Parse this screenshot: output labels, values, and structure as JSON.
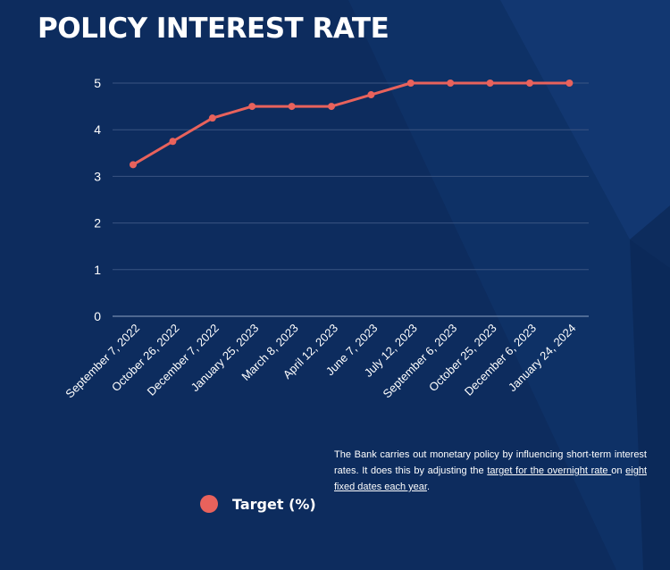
{
  "title": "POLICY INTEREST RATE",
  "colors": {
    "background": "#0d2c5e",
    "line": "#e8625c",
    "grid": "#3a5482"
  },
  "legend": {
    "icon": "circle-marker-icon",
    "label": "Target (%)"
  },
  "note": {
    "text1": "The Bank carries out monetary policy by influencing short-term interest rates. It does this by adjusting the ",
    "link1": "target for the overnight rate ",
    "text2": "on ",
    "link2": "eight fixed dates each year",
    "text3": "."
  },
  "chart_data": {
    "type": "line",
    "categories": [
      "September 7, 2022",
      "October 26, 2022",
      "December 7, 2022",
      "January 25, 2023",
      "March 8, 2023",
      "April 12, 2023",
      "June 7, 2023",
      "July 12, 2023",
      "September 6, 2023",
      "October 25, 2023",
      "December 6, 2023",
      "January 24, 2024"
    ],
    "series": [
      {
        "name": "Target (%)",
        "values": [
          3.25,
          3.75,
          4.25,
          4.5,
          4.5,
          4.5,
          4.75,
          5,
          5,
          5,
          5,
          5
        ]
      }
    ],
    "yticks": [
      "0",
      "1",
      "2",
      "3",
      "4",
      "5"
    ],
    "ylim": [
      0,
      5
    ],
    "grid": true,
    "legend_position": "bottom-left"
  }
}
